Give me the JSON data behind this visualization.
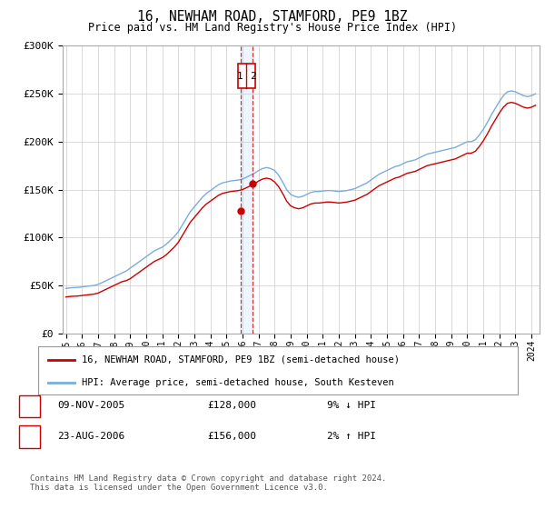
{
  "title": "16, NEWHAM ROAD, STAMFORD, PE9 1BZ",
  "subtitle": "Price paid vs. HM Land Registry's House Price Index (HPI)",
  "legend_line1": "16, NEWHAM ROAD, STAMFORD, PE9 1BZ (semi-detached house)",
  "legend_line2": "HPI: Average price, semi-detached house, South Kesteven",
  "footer": "Contains HM Land Registry data © Crown copyright and database right 2024.\nThis data is licensed under the Open Government Licence v3.0.",
  "transactions": [
    {
      "num": 1,
      "date": "09-NOV-2005",
      "price": 128000,
      "hpi_rel": "9% ↓ HPI",
      "year": 2005.86
    },
    {
      "num": 2,
      "date": "23-AUG-2006",
      "price": 156000,
      "hpi_rel": "2% ↑ HPI",
      "year": 2006.64
    }
  ],
  "red_color": "#cc0000",
  "blue_color": "#7aaddb",
  "bg_color": "#ffffff",
  "grid_color": "#cccccc",
  "shade_color": "#ddeeff",
  "ylim": [
    0,
    300000
  ],
  "yticks": [
    0,
    50000,
    100000,
    150000,
    200000,
    250000,
    300000
  ],
  "ytick_labels": [
    "£0",
    "£50K",
    "£100K",
    "£150K",
    "£200K",
    "£250K",
    "£300K"
  ],
  "xlim_start": 1994.8,
  "xlim_end": 2024.5,
  "xtick_years": [
    1995,
    1996,
    1997,
    1998,
    1999,
    2000,
    2001,
    2002,
    2003,
    2004,
    2005,
    2006,
    2007,
    2008,
    2009,
    2010,
    2011,
    2012,
    2013,
    2014,
    2015,
    2016,
    2017,
    2018,
    2019,
    2020,
    2021,
    2022,
    2023,
    2024
  ],
  "hpi_data": {
    "years": [
      1995.0,
      1995.25,
      1995.5,
      1995.75,
      1996.0,
      1996.25,
      1996.5,
      1996.75,
      1997.0,
      1997.25,
      1997.5,
      1997.75,
      1998.0,
      1998.25,
      1998.5,
      1998.75,
      1999.0,
      1999.25,
      1999.5,
      1999.75,
      2000.0,
      2000.25,
      2000.5,
      2000.75,
      2001.0,
      2001.25,
      2001.5,
      2001.75,
      2002.0,
      2002.25,
      2002.5,
      2002.75,
      2003.0,
      2003.25,
      2003.5,
      2003.75,
      2004.0,
      2004.25,
      2004.5,
      2004.75,
      2005.0,
      2005.25,
      2005.5,
      2005.75,
      2006.0,
      2006.25,
      2006.5,
      2006.75,
      2007.0,
      2007.25,
      2007.5,
      2007.75,
      2008.0,
      2008.25,
      2008.5,
      2008.75,
      2009.0,
      2009.25,
      2009.5,
      2009.75,
      2010.0,
      2010.25,
      2010.5,
      2010.75,
      2011.0,
      2011.25,
      2011.5,
      2011.75,
      2012.0,
      2012.25,
      2012.5,
      2012.75,
      2013.0,
      2013.25,
      2013.5,
      2013.75,
      2014.0,
      2014.25,
      2014.5,
      2014.75,
      2015.0,
      2015.25,
      2015.5,
      2015.75,
      2016.0,
      2016.25,
      2016.5,
      2016.75,
      2017.0,
      2017.25,
      2017.5,
      2017.75,
      2018.0,
      2018.25,
      2018.5,
      2018.75,
      2019.0,
      2019.25,
      2019.5,
      2019.75,
      2020.0,
      2020.25,
      2020.5,
      2020.75,
      2021.0,
      2021.25,
      2021.5,
      2021.75,
      2022.0,
      2022.25,
      2022.5,
      2022.75,
      2023.0,
      2023.25,
      2023.5,
      2023.75,
      2024.0,
      2024.25
    ],
    "values": [
      47000,
      47500,
      47800,
      48000,
      48500,
      49000,
      49500,
      50000,
      51000,
      53000,
      55000,
      57000,
      59000,
      61000,
      63000,
      65000,
      68000,
      71000,
      74000,
      77000,
      80000,
      83000,
      86000,
      88000,
      90000,
      93000,
      97000,
      101000,
      106000,
      113000,
      120000,
      127000,
      132000,
      137000,
      142000,
      146000,
      149000,
      152000,
      155000,
      157000,
      158000,
      159000,
      159500,
      160000,
      161000,
      163000,
      165000,
      167000,
      170000,
      172000,
      173000,
      172000,
      170000,
      165000,
      158000,
      150000,
      145000,
      143000,
      142000,
      143000,
      145000,
      147000,
      148000,
      148000,
      148500,
      149000,
      149000,
      148500,
      148000,
      148500,
      149000,
      150000,
      151000,
      153000,
      155000,
      157000,
      160000,
      163000,
      166000,
      168000,
      170000,
      172000,
      174000,
      175000,
      177000,
      179000,
      180000,
      181000,
      183000,
      185000,
      187000,
      188000,
      189000,
      190000,
      191000,
      192000,
      193000,
      194000,
      196000,
      198000,
      200000,
      200000,
      202000,
      207000,
      213000,
      220000,
      228000,
      235000,
      242000,
      248000,
      252000,
      253000,
      252000,
      250000,
      248000,
      247000,
      248000,
      250000
    ]
  },
  "price_data": {
    "years": [
      1995.0,
      1995.25,
      1995.5,
      1995.75,
      1996.0,
      1996.25,
      1996.5,
      1996.75,
      1997.0,
      1997.25,
      1997.5,
      1997.75,
      1998.0,
      1998.25,
      1998.5,
      1998.75,
      1999.0,
      1999.25,
      1999.5,
      1999.75,
      2000.0,
      2000.25,
      2000.5,
      2000.75,
      2001.0,
      2001.25,
      2001.5,
      2001.75,
      2002.0,
      2002.25,
      2002.5,
      2002.75,
      2003.0,
      2003.25,
      2003.5,
      2003.75,
      2004.0,
      2004.25,
      2004.5,
      2004.75,
      2005.0,
      2005.25,
      2005.5,
      2005.75,
      2006.0,
      2006.25,
      2006.5,
      2006.75,
      2007.0,
      2007.25,
      2007.5,
      2007.75,
      2008.0,
      2008.25,
      2008.5,
      2008.75,
      2009.0,
      2009.25,
      2009.5,
      2009.75,
      2010.0,
      2010.25,
      2010.5,
      2010.75,
      2011.0,
      2011.25,
      2011.5,
      2011.75,
      2012.0,
      2012.25,
      2012.5,
      2012.75,
      2013.0,
      2013.25,
      2013.5,
      2013.75,
      2014.0,
      2014.25,
      2014.5,
      2014.75,
      2015.0,
      2015.25,
      2015.5,
      2015.75,
      2016.0,
      2016.25,
      2016.5,
      2016.75,
      2017.0,
      2017.25,
      2017.5,
      2017.75,
      2018.0,
      2018.25,
      2018.5,
      2018.75,
      2019.0,
      2019.25,
      2019.5,
      2019.75,
      2020.0,
      2020.25,
      2020.5,
      2020.75,
      2021.0,
      2021.25,
      2021.5,
      2021.75,
      2022.0,
      2022.25,
      2022.5,
      2022.75,
      2023.0,
      2023.25,
      2023.5,
      2023.75,
      2024.0,
      2024.25
    ],
    "values": [
      38000,
      38500,
      38800,
      39000,
      39500,
      40000,
      40500,
      41000,
      42000,
      44000,
      46000,
      48000,
      50000,
      52000,
      54000,
      55000,
      57000,
      60000,
      63000,
      66000,
      69000,
      72000,
      75000,
      77000,
      79000,
      82000,
      86000,
      90000,
      95000,
      102000,
      109000,
      116000,
      121000,
      126000,
      131000,
      135000,
      138000,
      141000,
      144000,
      146000,
      147000,
      148000,
      148500,
      149000,
      150000,
      152000,
      154000,
      156000,
      159000,
      161000,
      162000,
      161000,
      158000,
      153000,
      146000,
      138000,
      133000,
      131000,
      130000,
      131000,
      133000,
      135000,
      136000,
      136000,
      136500,
      137000,
      137000,
      136500,
      136000,
      136500,
      137000,
      138000,
      139000,
      141000,
      143000,
      145000,
      148000,
      151000,
      154000,
      156000,
      158000,
      160000,
      162000,
      163000,
      165000,
      167000,
      168000,
      169000,
      171000,
      173000,
      175000,
      176000,
      177000,
      178000,
      179000,
      180000,
      181000,
      182000,
      184000,
      186000,
      188000,
      188000,
      190000,
      195000,
      201000,
      208000,
      216000,
      223000,
      230000,
      236000,
      240000,
      241000,
      240000,
      238000,
      236000,
      235000,
      236000,
      238000
    ]
  }
}
